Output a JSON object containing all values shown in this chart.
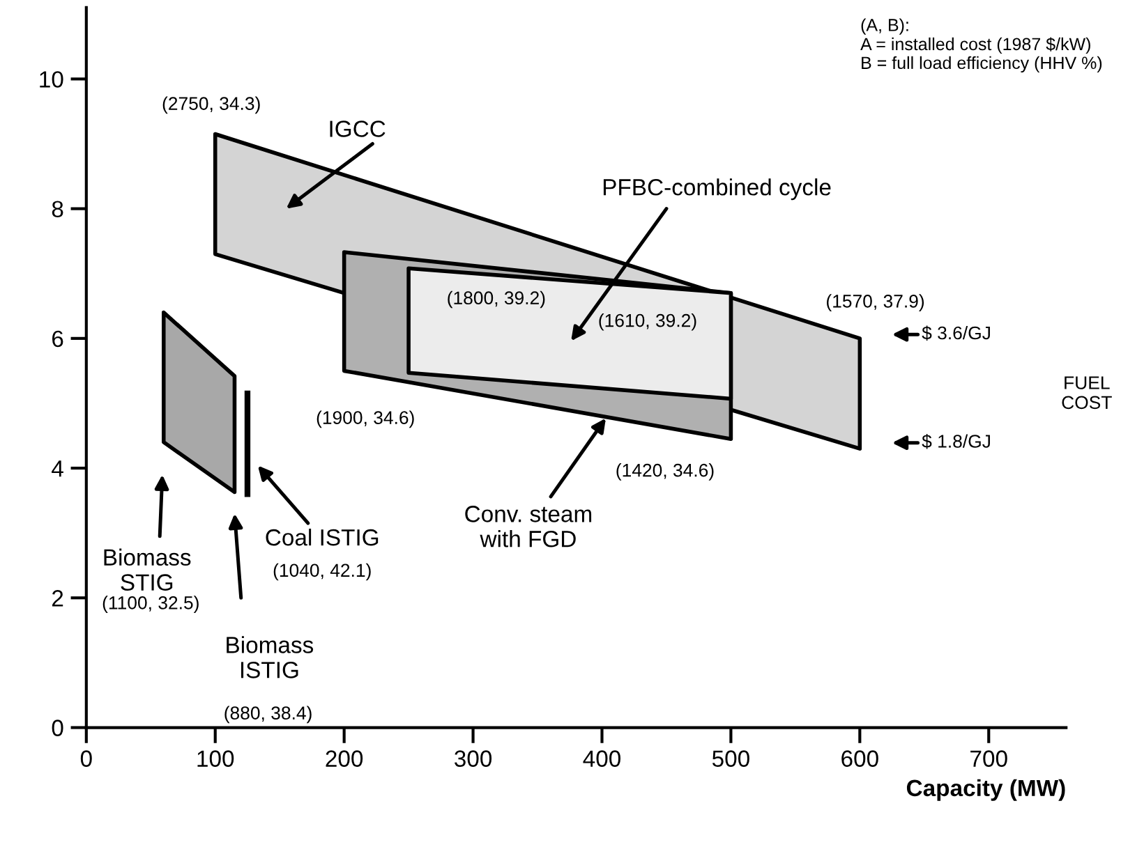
{
  "chart_data": {
    "type": "area",
    "xlabel": "Capacity (MW)",
    "xlim": [
      0,
      760
    ],
    "ylim": [
      0,
      11.1
    ],
    "xticks": [
      0,
      100,
      200,
      300,
      400,
      500,
      600,
      700
    ],
    "yticks": [
      0,
      2,
      4,
      6,
      8,
      10
    ],
    "grid": false,
    "legend": false,
    "series": [
      {
        "color": "#d4d4d4",
        "x": [
          100,
          600,
          600,
          100
        ],
        "values": [
          9.15,
          6.0,
          4.3,
          7.3
        ]
      },
      {
        "color": "#b0b0b0",
        "x": [
          200,
          500,
          500,
          200
        ],
        "values": [
          7.33,
          6.7,
          4.45,
          5.5
        ]
      },
      {
        "color": "#ececec",
        "x": [
          250,
          500,
          500,
          250
        ],
        "values": [
          7.08,
          6.7,
          5.07,
          5.47
        ]
      },
      {
        "color": "#a8a8a8",
        "x": [
          60,
          115,
          115,
          60
        ],
        "values": [
          6.4,
          5.42,
          3.63,
          4.4
        ]
      },
      {
        "type": "line",
        "color": "#000000",
        "x": [
          125,
          125
        ],
        "values": [
          3.6,
          5.15
        ]
      }
    ],
    "annotations": [
      "(A, B):\nA = installed cost (1987 $/kW)\nB = full load efficiency (HHV %)",
      {
        "text": "(2750, 34.3)",
        "x": 100,
        "y": 9.15
      },
      "IGCC",
      "PFBC-combined cycle",
      "(1800, 39.2)",
      {
        "text": "(1610, 39.2)",
        "x": 500,
        "y": 6.7
      },
      "(1570, 37.9)",
      {
        "text": "(1900, 34.6)",
        "x": 200,
        "y": 5.5
      },
      {
        "text": "(1420, 34.6)",
        "x": 500,
        "y": 4.45
      },
      {
        "text": "Conv. steam\nwith FGD",
        "x": 403,
        "y": 4.77
      },
      "Biomass\nSTIG",
      "(1100, 32.5)",
      "Coal ISTIG",
      "(1040, 42.1)",
      "Biomass\nISTIG",
      "(880, 38.4)",
      "$ 3.6/GJ",
      "$ 1.8/GJ",
      "FUEL\nCOST"
    ]
  }
}
